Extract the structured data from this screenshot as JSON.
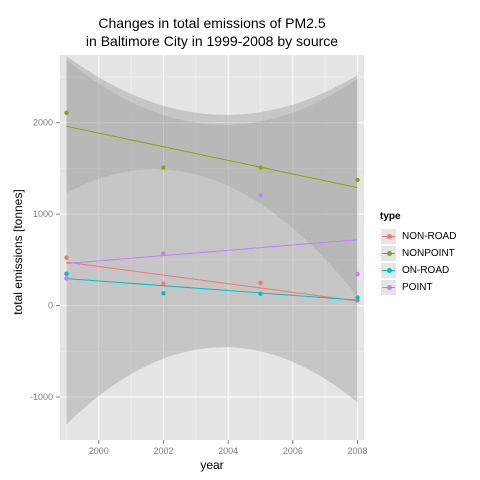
{
  "chart_data": {
    "type": "scatter",
    "title_lines": [
      "Changes in total emissions of PM2.5",
      "in Baltimore City in 1999-2008 by source"
    ],
    "xlabel": "year",
    "ylabel": "total emissions [tonnes]",
    "xlim": [
      1998.8,
      2008.2
    ],
    "ylim": [
      -1470,
      2740
    ],
    "x_ticks": [
      2000,
      2002,
      2004,
      2006,
      2008
    ],
    "y_ticks": [
      -1000,
      0,
      1000,
      2000
    ],
    "x": [
      1999,
      2002,
      2005,
      2008
    ],
    "legend_title": "type",
    "legend_position": "right",
    "grid": true,
    "series": [
      {
        "name": "NON-ROAD",
        "color": "#F8766D",
        "values": [
          522.9,
          240.8,
          248.9,
          55.8
        ],
        "fit": [
          475,
          50
        ]
      },
      {
        "name": "NONPOINT",
        "color": "#7CAE00",
        "values": [
          2107.6,
          1509.5,
          1509.5,
          1373.2
        ],
        "fit": [
          1960,
          1290
        ]
      },
      {
        "name": "ON-ROAD",
        "color": "#00BFC4",
        "values": [
          346.8,
          134.3,
          130.4,
          88.3
        ],
        "fit": [
          295,
          60
        ]
      },
      {
        "name": "POINT",
        "color": "#C77CFF",
        "values": [
          296.8,
          569.3,
          1202.5,
          344.98
        ],
        "fit": [
          460,
          720
        ]
      }
    ],
    "confidence_band": {
      "upper": [
        2730,
        2090,
        2520
      ],
      "lower": [
        -1300,
        -460,
        -1060
      ],
      "x": [
        1999,
        2003.5,
        2008
      ]
    },
    "inner_band": {
      "upper": [
        2690,
        1980,
        2480
      ],
      "lower": [
        1230,
        1380,
        100
      ],
      "x": [
        1999,
        2003.5,
        2008
      ]
    }
  }
}
